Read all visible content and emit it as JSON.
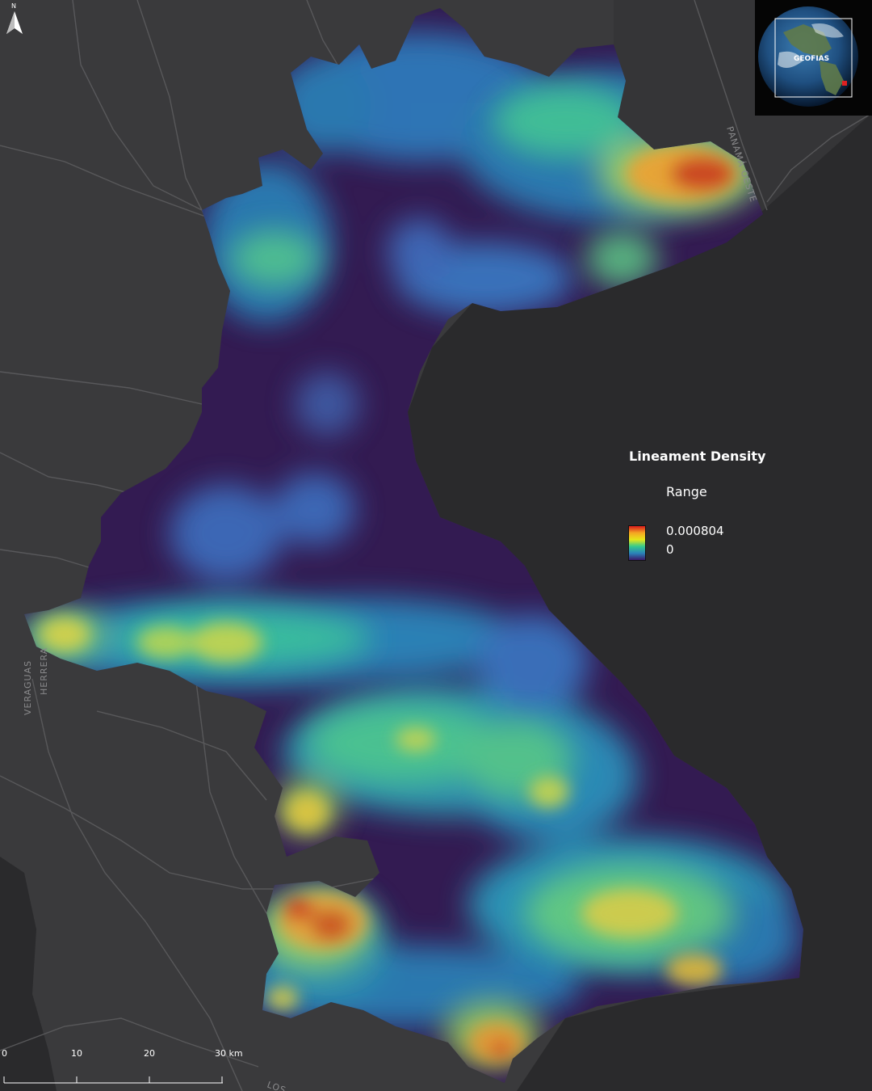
{
  "legend": {
    "title": "Lineament Density",
    "subtitle": "Range",
    "max_label": "0.000804",
    "min_label": "0",
    "color_ramp": [
      "#d7191c",
      "#f5a623",
      "#e6e619",
      "#34c98e",
      "#2b83ba",
      "#3a1a6b"
    ]
  },
  "inset": {
    "label": "GEOFIAS"
  },
  "scale_bar": {
    "ticks": [
      "0",
      "10",
      "20",
      "30 km"
    ]
  },
  "north_arrow": {
    "label": "N"
  },
  "basemap_labels": {
    "province_west": "VERAGUAS",
    "road_west": "HERRERA",
    "road_northeast": "PANAMÁ OESTE",
    "place_south": "LOS"
  },
  "colors": {
    "background": "#3a3a3c",
    "sea": "#2a2a2c",
    "low_density": "#321a50"
  }
}
